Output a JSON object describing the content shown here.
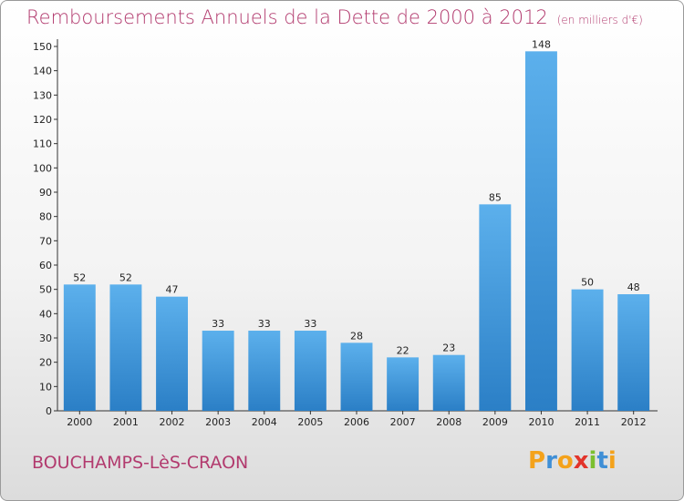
{
  "title": "Remboursements Annuels de la Dette de 2000 à 2012",
  "subtitle": "(en milliers d'€)",
  "place": "BOUCHAMPS-LèS-CRAON",
  "logo": {
    "letters": [
      "P",
      "r",
      "o",
      "x",
      "i",
      "t",
      "i"
    ],
    "colors": [
      "#f4a21b",
      "#3f8fd6",
      "#f4a21b",
      "#e2342b",
      "#7bbf2f",
      "#3f8fd6",
      "#f4a21b"
    ]
  },
  "colors": {
    "bar": "#3a93d8",
    "bar_light": "#5cb0ec",
    "text": "#b23a6e"
  },
  "chart_data": {
    "type": "bar",
    "categories": [
      "2000",
      "2001",
      "2002",
      "2003",
      "2004",
      "2005",
      "2006",
      "2007",
      "2008",
      "2009",
      "2010",
      "2011",
      "2012"
    ],
    "values": [
      52,
      52,
      47,
      33,
      33,
      33,
      28,
      22,
      23,
      85,
      148,
      50,
      48
    ],
    "ylim": [
      0,
      150
    ],
    "yticks": [
      0,
      10,
      20,
      30,
      40,
      50,
      60,
      70,
      80,
      90,
      100,
      110,
      120,
      130,
      140,
      150
    ],
    "xlabel": "",
    "ylabel": "",
    "grid": false,
    "legend": "none"
  }
}
